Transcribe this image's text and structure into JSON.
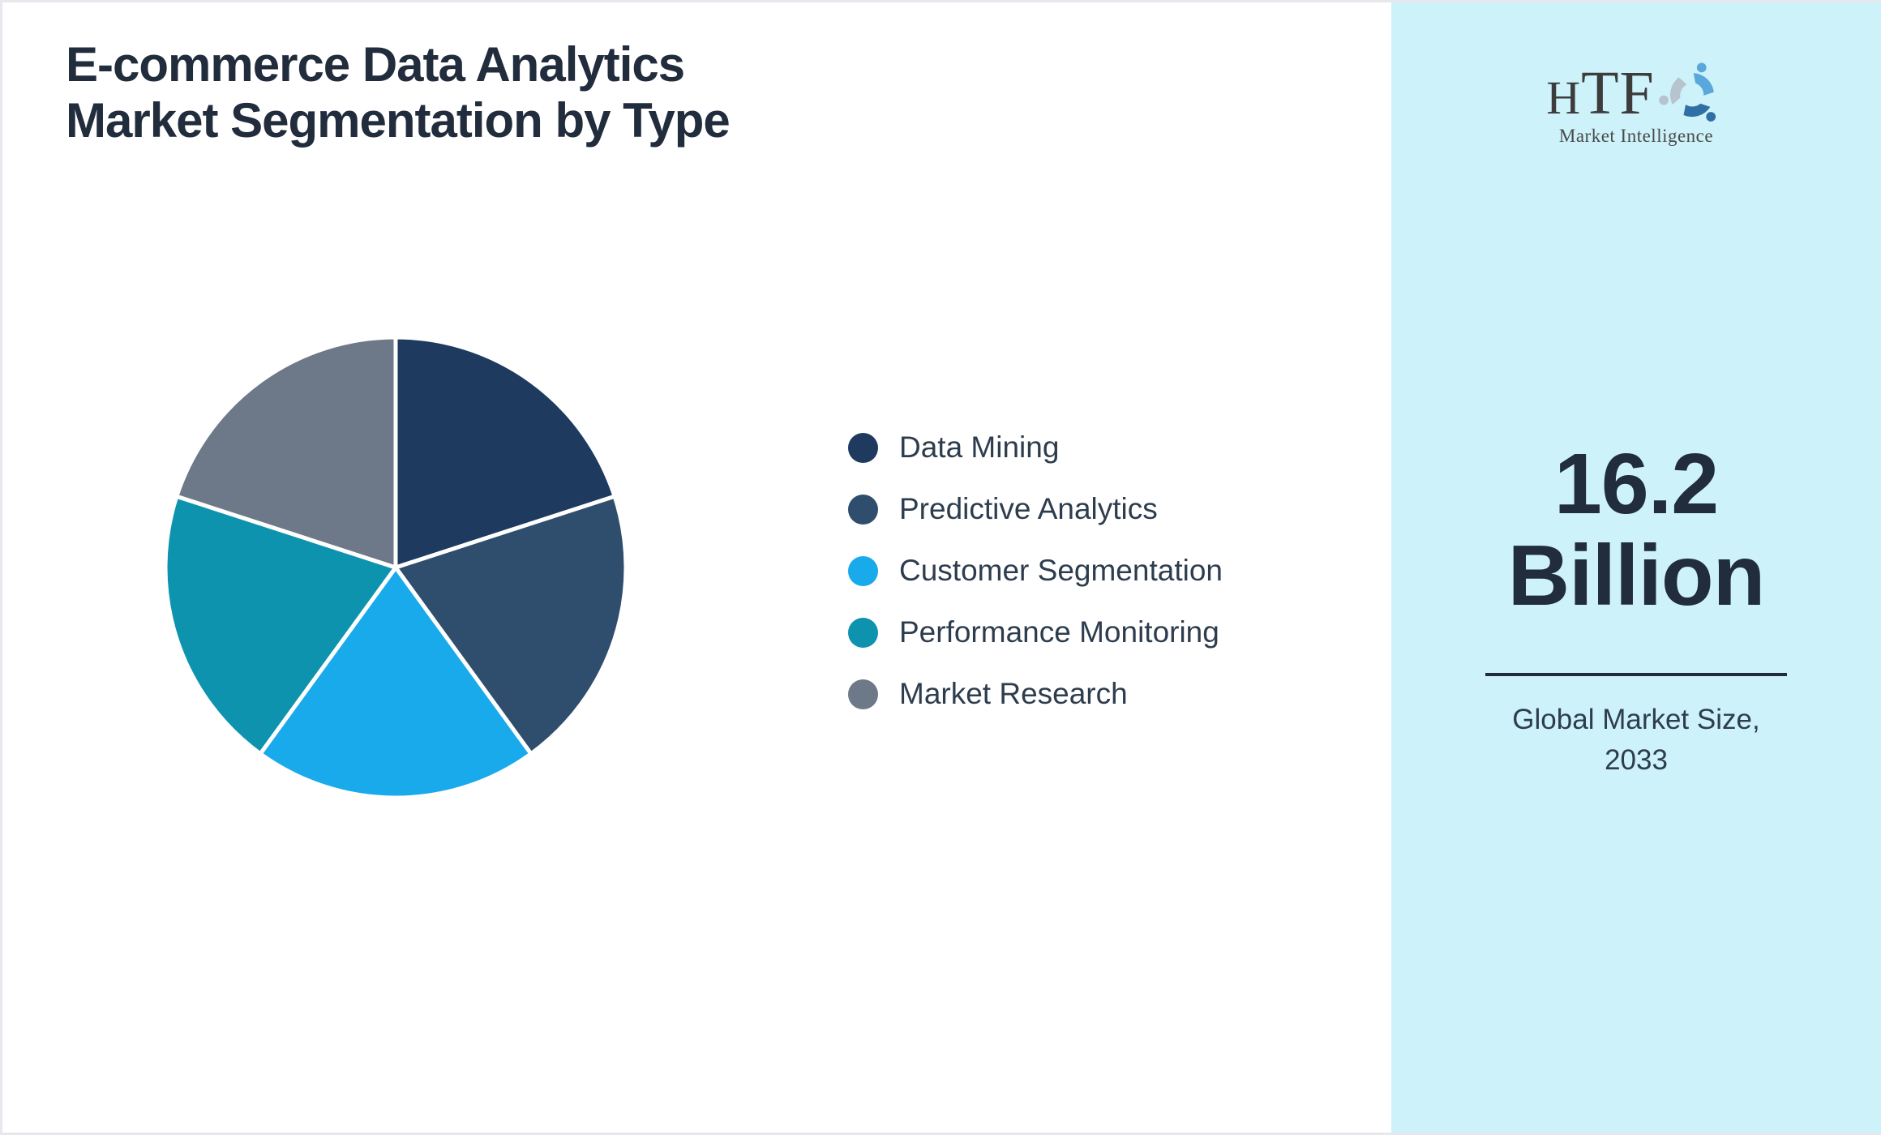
{
  "header": {
    "title_line1": "E-commerce Data Analytics",
    "title_line2": "Market Segmentation by Type"
  },
  "chart_data": {
    "type": "pie",
    "title": "E-commerce Data Analytics Market Segmentation by Type",
    "start_angle_deg": 0,
    "direction": "clockwise",
    "legend_position": "right",
    "slices": [
      {
        "label": "Data Mining",
        "value": 20,
        "color": "#1e3a5f"
      },
      {
        "label": "Predictive Analytics",
        "value": 20,
        "color": "#2f4e6d"
      },
      {
        "label": "Customer Segmentation",
        "value": 20,
        "color": "#19aaeb"
      },
      {
        "label": "Performance Monitoring",
        "value": 20,
        "color": "#0e93ae"
      },
      {
        "label": "Market Research",
        "value": 20,
        "color": "#6d7888"
      }
    ],
    "slice_border_color": "#ffffff"
  },
  "sidebar": {
    "background": "#cdf2fa",
    "logo": {
      "text_h": "H",
      "text_tf": "TF",
      "subtext": "Market Intelligence",
      "icon": "htf-swirl-icon",
      "icon_colors": [
        "#5aa7dc",
        "#2f6fa5",
        "#b7c3ce"
      ]
    },
    "market_size_value_line1": "16.2",
    "market_size_value_line2": "Billion",
    "caption_line1": "Global Market Size,",
    "caption_line2": "2033"
  },
  "colors": {
    "text_primary": "#212c3c",
    "legend_text": "#2e3d4e",
    "divider": "#212c3c",
    "page_background": "#ffffff",
    "page_border": "#e7e8ee"
  }
}
